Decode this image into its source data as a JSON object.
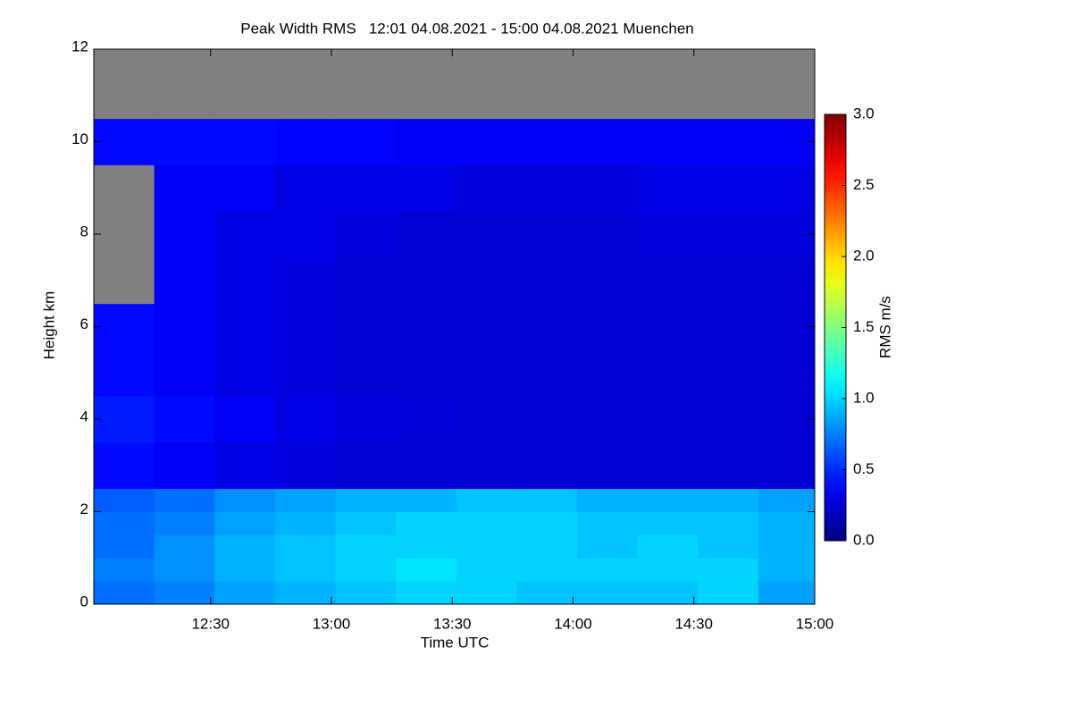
{
  "chart_data": {
    "type": "heatmap",
    "title": "Peak Width RMS   12:01 04.08.2021 - 15:00 04.08.2021 Muenchen",
    "x_label": "Time UTC",
    "y_label": "Height km",
    "colorbar_label": "RMS m/s",
    "colormap": "jet",
    "missing_color": "#808080",
    "grid": false,
    "xlim": [
      721,
      900
    ],
    "xticks": [
      {
        "value": 750,
        "label": "12:30"
      },
      {
        "value": 780,
        "label": "13:00"
      },
      {
        "value": 810,
        "label": "13:30"
      },
      {
        "value": 840,
        "label": "14:00"
      },
      {
        "value": 870,
        "label": "14:30"
      },
      {
        "value": 900,
        "label": "15:00"
      }
    ],
    "ylim": [
      0,
      12
    ],
    "yticks": [
      0,
      2,
      4,
      6,
      8,
      10,
      12
    ],
    "clim": [
      0,
      3
    ],
    "cticks": [
      {
        "value": 0,
        "label": "0.0"
      },
      0.5,
      {
        "value": 1,
        "label": "1.0"
      },
      1.5,
      {
        "value": 2,
        "label": "2.0"
      },
      2.5,
      {
        "value": 3,
        "label": "3.0"
      }
    ],
    "x_edges": [
      721,
      736,
      751,
      766,
      781,
      796,
      811,
      826,
      841,
      856,
      871,
      886,
      900
    ],
    "y_edges": [
      0,
      0.5,
      1,
      1.5,
      2,
      2.5,
      3.5,
      4.5,
      5.5,
      6.5,
      7.5,
      8.5,
      9.5,
      10.5,
      12
    ],
    "z": [
      [
        0.7,
        0.75,
        0.85,
        0.9,
        0.95,
        1.0,
        1.0,
        0.95,
        0.95,
        0.95,
        1.0,
        0.85
      ],
      [
        0.75,
        0.8,
        0.9,
        0.95,
        1.0,
        1.05,
        1.0,
        1.0,
        1.0,
        1.0,
        1.0,
        0.9
      ],
      [
        0.7,
        0.8,
        0.9,
        0.95,
        1.0,
        1.0,
        1.0,
        1.0,
        0.95,
        1.0,
        0.95,
        0.9
      ],
      [
        0.7,
        0.75,
        0.85,
        0.9,
        0.95,
        1.0,
        1.0,
        1.0,
        0.95,
        0.95,
        0.95,
        0.9
      ],
      [
        0.65,
        0.7,
        0.8,
        0.85,
        0.9,
        0.9,
        0.95,
        0.95,
        0.9,
        0.9,
        0.9,
        0.85
      ],
      [
        0.4,
        0.35,
        0.3,
        0.28,
        0.25,
        0.25,
        0.25,
        0.25,
        0.25,
        0.25,
        0.25,
        0.25
      ],
      [
        0.45,
        0.4,
        0.35,
        0.3,
        0.28,
        0.27,
        0.25,
        0.25,
        0.25,
        0.25,
        0.25,
        0.25
      ],
      [
        0.4,
        0.35,
        0.3,
        0.28,
        0.25,
        0.25,
        0.25,
        0.25,
        0.25,
        0.25,
        0.25,
        0.25
      ],
      [
        0.4,
        0.35,
        0.3,
        0.28,
        0.25,
        0.25,
        0.25,
        0.25,
        0.25,
        0.25,
        0.25,
        0.25
      ],
      [
        null,
        0.35,
        0.3,
        0.28,
        0.25,
        0.25,
        0.25,
        0.25,
        0.25,
        0.25,
        0.25,
        0.25
      ],
      [
        null,
        0.35,
        0.3,
        0.3,
        0.28,
        0.25,
        0.25,
        0.25,
        0.25,
        0.28,
        0.28,
        0.28
      ],
      [
        null,
        0.35,
        0.35,
        0.3,
        0.3,
        0.3,
        0.28,
        0.28,
        0.28,
        0.3,
        0.3,
        0.3
      ],
      [
        0.4,
        0.4,
        0.4,
        0.38,
        0.38,
        0.35,
        0.35,
        0.35,
        0.35,
        0.35,
        0.35,
        0.35
      ],
      [
        null,
        null,
        null,
        null,
        null,
        null,
        null,
        null,
        null,
        null,
        null,
        null
      ]
    ]
  }
}
